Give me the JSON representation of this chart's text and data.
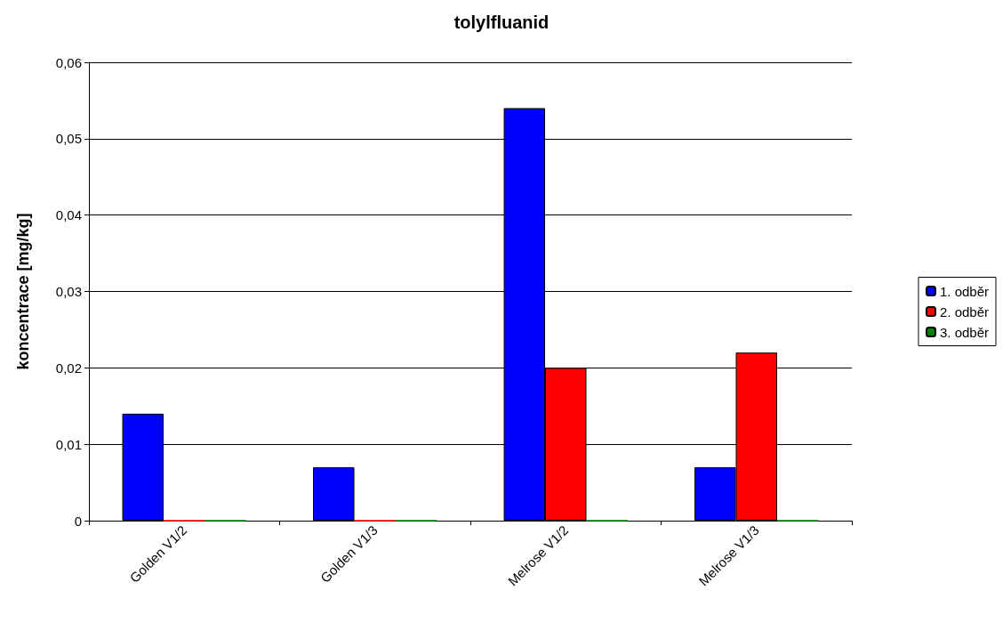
{
  "chart_data": {
    "type": "bar",
    "title": "tolylfluanid",
    "ylabel": "koncentrace [mg/kg]",
    "categories": [
      "Golden V1/2",
      "Golden V1/3",
      "Melrose V1/2",
      "Melrose V1/3"
    ],
    "series": [
      {
        "name": "1. odběr",
        "color": "#0000ff",
        "values": [
          0.014,
          0.007,
          0.054,
          0.007
        ]
      },
      {
        "name": "2. odběr",
        "color": "#ff0000",
        "values": [
          0,
          0,
          0.02,
          0.022
        ]
      },
      {
        "name": "3. odběr",
        "color": "#008000",
        "values": [
          0,
          0,
          0,
          0
        ]
      }
    ],
    "ylim": [
      0,
      0.06
    ],
    "yticks": [
      {
        "value": 0,
        "label": "0"
      },
      {
        "value": 0.01,
        "label": "0,01"
      },
      {
        "value": 0.02,
        "label": "0,02"
      },
      {
        "value": 0.03,
        "label": "0,03"
      },
      {
        "value": 0.04,
        "label": "0,04"
      },
      {
        "value": 0.05,
        "label": "0,05"
      },
      {
        "value": 0.06,
        "label": "0,06"
      }
    ],
    "grid": "y",
    "legend": "right"
  }
}
